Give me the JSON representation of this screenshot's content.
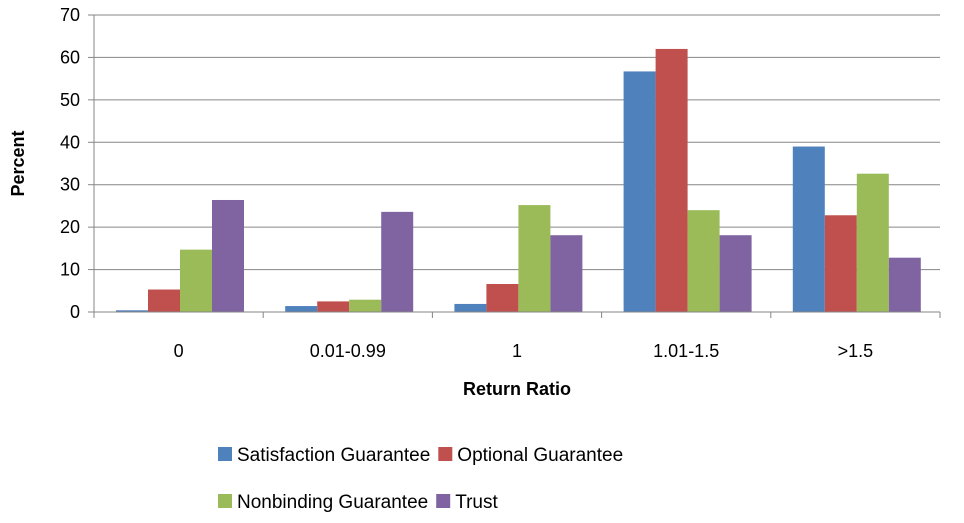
{
  "chart_data": {
    "type": "bar",
    "title": "",
    "xlabel": "Return Ratio",
    "ylabel": "Percent",
    "categories": [
      "0",
      "0.01-0.99",
      "1",
      "1.01-1.5",
      ">1.5"
    ],
    "ylim": [
      0,
      70
    ],
    "yticks": [
      "0",
      "10",
      "20",
      "30",
      "40",
      "50",
      "60",
      "70"
    ],
    "grid": true,
    "legend_position": "bottom",
    "series": [
      {
        "name": "Satisfaction Guarantee",
        "color": "#4F81BD",
        "values": [
          0.4,
          1.4,
          1.9,
          56.7,
          39.0
        ]
      },
      {
        "name": "Optional Guarantee",
        "color": "#C0504D",
        "values": [
          5.3,
          2.5,
          6.6,
          62.0,
          22.8
        ]
      },
      {
        "name": "Nonbinding Guarantee",
        "color": "#9BBB59",
        "values": [
          14.7,
          2.9,
          25.2,
          24.0,
          32.6
        ]
      },
      {
        "name": "Trust",
        "color": "#8064A2",
        "values": [
          26.4,
          23.6,
          18.1,
          18.1,
          12.8
        ]
      }
    ]
  }
}
